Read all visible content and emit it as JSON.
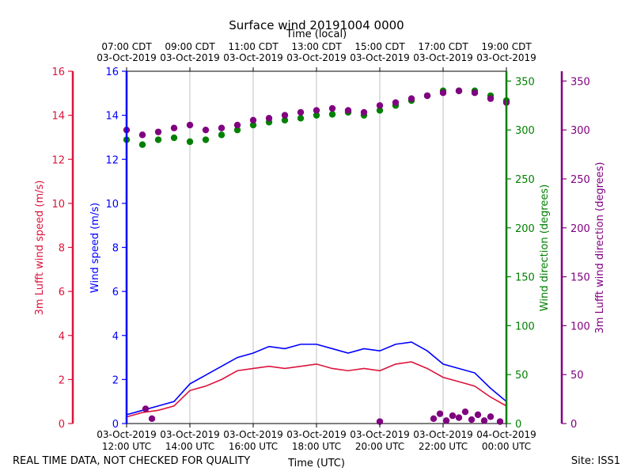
{
  "chart_data": {
    "type": "line+scatter",
    "title": "Surface wind 20191004 0000",
    "top_axis_label": "Time (local)",
    "top_ticks": [
      {
        "hour": 0,
        "line1": "07:00 CDT",
        "line2": "03-Oct-2019"
      },
      {
        "hour": 2,
        "line1": "09:00 CDT",
        "line2": "03-Oct-2019"
      },
      {
        "hour": 4,
        "line1": "11:00 CDT",
        "line2": "03-Oct-2019"
      },
      {
        "hour": 6,
        "line1": "13:00 CDT",
        "line2": "03-Oct-2019"
      },
      {
        "hour": 8,
        "line1": "15:00 CDT",
        "line2": "03-Oct-2019"
      },
      {
        "hour": 10,
        "line1": "17:00 CDT",
        "line2": "03-Oct-2019"
      },
      {
        "hour": 12,
        "line1": "19:00 CDT",
        "line2": "03-Oct-2019"
      }
    ],
    "bottom_axis_label": "Time (UTC)",
    "bottom_ticks": [
      {
        "hour": 0,
        "line1": "03-Oct-2019",
        "line2": "12:00 UTC"
      },
      {
        "hour": 2,
        "line1": "03-Oct-2019",
        "line2": "14:00 UTC"
      },
      {
        "hour": 4,
        "line1": "03-Oct-2019",
        "line2": "16:00 UTC"
      },
      {
        "hour": 6,
        "line1": "03-Oct-2019",
        "line2": "18:00 UTC"
      },
      {
        "hour": 8,
        "line1": "03-Oct-2019",
        "line2": "20:00 UTC"
      },
      {
        "hour": 10,
        "line1": "03-Oct-2019",
        "line2": "22:00 UTC"
      },
      {
        "hour": 12,
        "line1": "04-Oct-2019",
        "line2": "00:00 UTC"
      }
    ],
    "x_range_hours_since_1200utc": [
      0,
      12
    ],
    "speed_axis": {
      "ylim": [
        0,
        16
      ],
      "ticks": [
        0,
        2,
        4,
        6,
        8,
        10,
        12,
        14,
        16
      ]
    },
    "direction_axis": {
      "ylim": [
        0,
        360
      ],
      "ticks": [
        0,
        50,
        100,
        150,
        200,
        250,
        300,
        350
      ]
    },
    "axes": {
      "lufft_speed": {
        "label": "3m Lufft wind speed (m/s)",
        "color": "#dc143c"
      },
      "wind_speed": {
        "label": "Wind speed (m/s)",
        "color": "#0000ff"
      },
      "wind_dir": {
        "label": "Wind direction (degrees)",
        "color": "#008000"
      },
      "lufft_dir": {
        "label": "3m Lufft wind direction (degrees)",
        "color": "#800080"
      }
    },
    "series": [
      {
        "name": "Wind speed (m/s)",
        "kind": "line",
        "color": "#0000ff",
        "x": [
          0,
          0.5,
          1,
          1.5,
          2,
          2.5,
          3,
          3.5,
          4,
          4.5,
          5,
          5.5,
          6,
          6.5,
          7,
          7.5,
          8,
          8.5,
          9,
          9.5,
          10,
          10.5,
          11,
          11.5,
          12
        ],
        "y": [
          0.4,
          0.6,
          0.8,
          1.0,
          1.8,
          2.2,
          2.6,
          3.0,
          3.2,
          3.5,
          3.4,
          3.6,
          3.6,
          3.4,
          3.2,
          3.4,
          3.3,
          3.6,
          3.7,
          3.3,
          2.7,
          2.5,
          2.3,
          1.6,
          1.0
        ]
      },
      {
        "name": "3m Lufft wind speed (m/s)",
        "kind": "line",
        "color": "#dc143c",
        "x": [
          0,
          0.5,
          1,
          1.5,
          2,
          2.5,
          3,
          3.5,
          4,
          4.5,
          5,
          5.5,
          6,
          6.5,
          7,
          7.5,
          8,
          8.5,
          9,
          9.5,
          10,
          10.5,
          11,
          11.5,
          12
        ],
        "y": [
          0.3,
          0.5,
          0.6,
          0.8,
          1.5,
          1.7,
          2.0,
          2.4,
          2.5,
          2.6,
          2.5,
          2.6,
          2.7,
          2.5,
          2.4,
          2.5,
          2.4,
          2.7,
          2.8,
          2.5,
          2.1,
          1.9,
          1.7,
          1.2,
          0.8
        ]
      },
      {
        "name": "Wind direction (degrees)",
        "kind": "scatter",
        "color": "#008000",
        "x": [
          0,
          0.5,
          1,
          1.5,
          2,
          2.5,
          3,
          3.5,
          4,
          4.5,
          5,
          5.5,
          6,
          6.5,
          7,
          7.5,
          8,
          8.5,
          9,
          9.5,
          10,
          10.5,
          11,
          11.5,
          12
        ],
        "y": [
          290,
          285,
          290,
          292,
          288,
          290,
          295,
          300,
          305,
          308,
          310,
          312,
          315,
          316,
          318,
          315,
          320,
          325,
          330,
          335,
          340,
          340,
          340,
          335,
          330
        ]
      },
      {
        "name": "3m Lufft wind direction (degrees)",
        "kind": "scatter",
        "color": "#800080",
        "x": [
          0,
          0.5,
          1,
          1.5,
          2,
          2.5,
          3,
          3.5,
          4,
          4.5,
          5,
          5.5,
          6,
          6.5,
          7,
          7.5,
          8,
          8.5,
          9,
          9.5,
          10,
          10.5,
          11,
          11.5,
          12
        ],
        "y": [
          300,
          295,
          298,
          302,
          305,
          300,
          302,
          305,
          310,
          312,
          315,
          318,
          320,
          322,
          320,
          318,
          325,
          328,
          332,
          335,
          338,
          340,
          338,
          332,
          328
        ]
      }
    ],
    "low_dir_cluster": {
      "name": "3m Lufft wind direction (degrees)",
      "color": "#800080",
      "x": [
        0.6,
        0.8,
        8.0,
        9.7,
        9.9,
        10.1,
        10.3,
        10.5,
        10.7,
        10.9,
        11.1,
        11.3,
        11.5,
        11.8
      ],
      "y": [
        15,
        5,
        2,
        5,
        10,
        3,
        8,
        6,
        12,
        4,
        9,
        3,
        7,
        2
      ]
    }
  },
  "footer": {
    "left_note": "REAL TIME DATA, NOT CHECKED FOR QUALITY",
    "right_note": "Site: ISS1"
  }
}
